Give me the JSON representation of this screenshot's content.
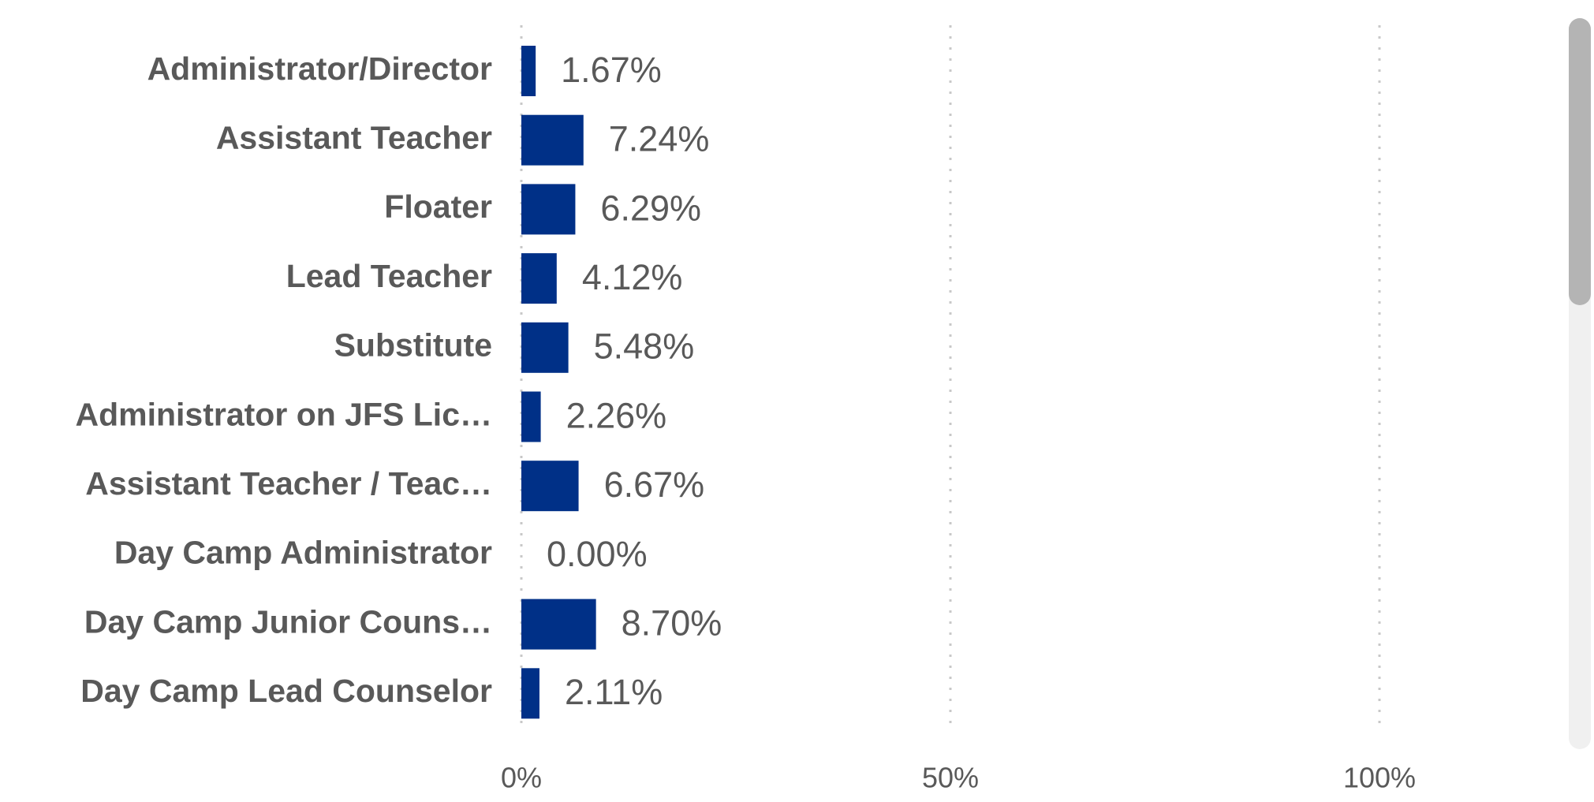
{
  "chart_data": {
    "type": "bar",
    "orientation": "horizontal",
    "categories": [
      "Administrator/Director",
      "Assistant Teacher",
      "Floater",
      "Lead Teacher",
      "Substitute",
      "Administrator on JFS Lic…",
      "Assistant Teacher / Teac…",
      "Day Camp Administrator",
      "Day Camp Junior Couns…",
      "Day Camp Lead Counselor"
    ],
    "values": [
      1.67,
      7.24,
      6.29,
      4.12,
      5.48,
      2.26,
      6.67,
      0.0,
      8.7,
      2.11
    ],
    "value_labels": [
      "1.67%",
      "7.24%",
      "6.29%",
      "4.12%",
      "5.48%",
      "2.26%",
      "6.67%",
      "0.00%",
      "8.70%",
      "2.11%"
    ],
    "color": "#003087",
    "xlim": [
      0,
      100
    ],
    "xticks": [
      {
        "value": 0,
        "label": "0%"
      },
      {
        "value": 50,
        "label": "50%"
      },
      {
        "value": 100,
        "label": "100%"
      }
    ],
    "grid": true
  }
}
